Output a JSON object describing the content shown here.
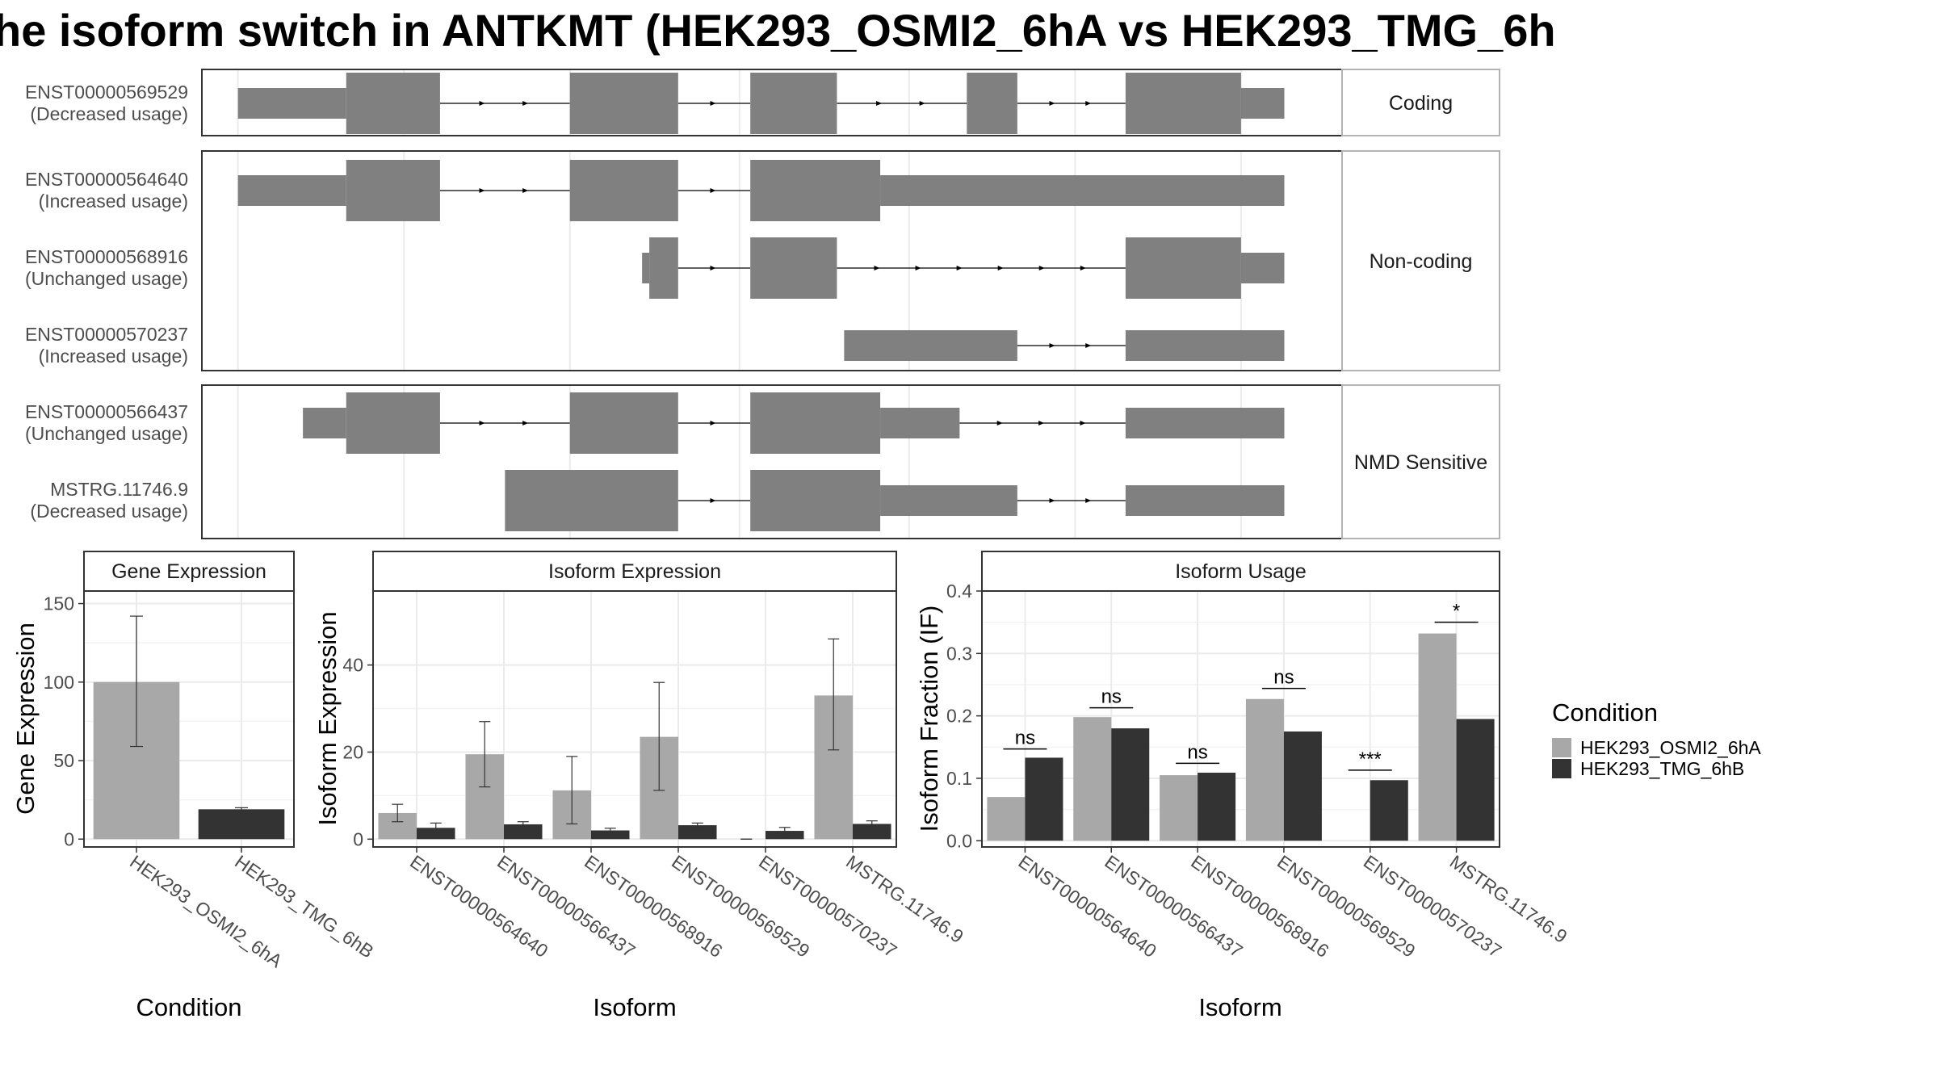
{
  "title": "he isoform switch in ANTKMT (HEK293_OSMI2_6hA vs HEK293_TMG_6h",
  "colors": {
    "exon": "#808080",
    "condA": "#a8a8a8",
    "condB": "#333333",
    "panel_border": "#333333",
    "strip_border": "#b3b3b3",
    "grid": "#ebebeb"
  },
  "structure": {
    "groups": [
      {
        "label": "Coding",
        "transcripts": [
          {
            "id": "ENST00000569529",
            "usage": "(Decreased usage)",
            "exons": [
              [
                0.05,
                0.2,
                "utr"
              ],
              [
                0.2,
                0.33,
                "cds"
              ],
              [
                0.51,
                0.66,
                "cds"
              ],
              [
                0.76,
                0.88,
                "cds"
              ],
              [
                1.06,
                1.13,
                "cds"
              ],
              [
                1.28,
                1.44,
                "cds"
              ],
              [
                1.44,
                1.5,
                "utr"
              ]
            ]
          }
        ]
      },
      {
        "label": "Non-coding",
        "transcripts": [
          {
            "id": "ENST00000564640",
            "usage": "(Increased usage)",
            "exons": [
              [
                0.05,
                0.2,
                "utr"
              ],
              [
                0.2,
                0.33,
                "cds"
              ],
              [
                0.51,
                0.66,
                "cds"
              ],
              [
                0.76,
                0.94,
                "cds"
              ],
              [
                0.94,
                1.5,
                "utr"
              ]
            ]
          },
          {
            "id": "ENST00000568916",
            "usage": "(Unchanged usage)",
            "exons": [
              [
                0.61,
                0.62,
                "utr"
              ],
              [
                0.62,
                0.66,
                "cds"
              ],
              [
                0.76,
                0.88,
                "cds"
              ],
              [
                1.28,
                1.44,
                "cds"
              ],
              [
                1.44,
                1.5,
                "utr"
              ]
            ]
          },
          {
            "id": "ENST00000570237",
            "usage": "(Increased usage)",
            "exons": [
              [
                0.89,
                1.13,
                "utr"
              ],
              [
                1.28,
                1.5,
                "utr"
              ]
            ]
          }
        ]
      },
      {
        "label": "NMD Sensitive",
        "transcripts": [
          {
            "id": "ENST00000566437",
            "usage": "(Unchanged usage)",
            "exons": [
              [
                0.14,
                0.2,
                "utr"
              ],
              [
                0.2,
                0.33,
                "cds"
              ],
              [
                0.51,
                0.66,
                "cds"
              ],
              [
                0.76,
                0.94,
                "cds"
              ],
              [
                0.94,
                1.05,
                "utr"
              ],
              [
                1.28,
                1.5,
                "utr"
              ]
            ]
          },
          {
            "id": "MSTRG.11746.9",
            "usage": "(Decreased usage)",
            "exons": [
              [
                0.42,
                0.66,
                "cds"
              ],
              [
                0.76,
                0.94,
                "cds"
              ],
              [
                0.94,
                1.13,
                "utr"
              ],
              [
                1.28,
                1.5,
                "utr"
              ]
            ]
          }
        ]
      }
    ]
  },
  "legend": {
    "title": "Condition",
    "items": [
      "HEK293_OSMI2_6hA",
      "HEK293_TMG_6hB"
    ]
  },
  "chart_data": [
    {
      "type": "bar",
      "title": "Gene Expression",
      "xlabel": "Condition",
      "ylabel": "Gene Expression",
      "categories": [
        "HEK293_OSMI2_6hA",
        "HEK293_TMG_6hB"
      ],
      "values": [
        100,
        19
      ],
      "errors": [
        [
          59,
          142
        ],
        [
          18,
          20
        ]
      ],
      "ylim": [
        -5,
        158
      ],
      "yticks": [
        0,
        50,
        100,
        150
      ]
    },
    {
      "type": "bar",
      "title": "Isoform Expression",
      "xlabel": "Isoform",
      "ylabel": "Isoform Expression",
      "categories": [
        "ENST00000564640",
        "ENST00000566437",
        "ENST00000568916",
        "ENST00000569529",
        "ENST00000570237",
        "MSTRG.11746.9"
      ],
      "series": [
        {
          "name": "HEK293_OSMI2_6hA",
          "values": [
            6,
            19.5,
            11.2,
            23.5,
            0,
            33
          ],
          "errors": [
            [
              4,
              8
            ],
            [
              12,
              27
            ],
            [
              3.5,
              19
            ],
            [
              11.2,
              36
            ],
            [
              0,
              0
            ],
            [
              20.5,
              46
            ]
          ]
        },
        {
          "name": "HEK293_TMG_6hB",
          "values": [
            2.6,
            3.4,
            2,
            3.2,
            1.9,
            3.5
          ],
          "errors": [
            [
              1.5,
              3.7
            ],
            [
              2.8,
              4
            ],
            [
              1.5,
              2.5
            ],
            [
              2.7,
              3.7
            ],
            [
              1.1,
              2.7
            ],
            [
              2.8,
              4.2
            ]
          ]
        }
      ],
      "ylim": [
        -1.8,
        57
      ],
      "yticks": [
        0,
        20,
        40
      ]
    },
    {
      "type": "bar",
      "title": "Isoform Usage",
      "xlabel": "Isoform",
      "ylabel": "Isoform Fraction (IF)",
      "categories": [
        "ENST00000564640",
        "ENST00000566437",
        "ENST00000568916",
        "ENST00000569529",
        "ENST00000570237",
        "MSTRG.11746.9"
      ],
      "series": [
        {
          "name": "HEK293_OSMI2_6hA",
          "values": [
            0.07,
            0.198,
            0.105,
            0.227,
            0,
            0.332
          ]
        },
        {
          "name": "HEK293_TMG_6hB",
          "values": [
            0.133,
            0.18,
            0.109,
            0.175,
            0.097,
            0.195
          ]
        }
      ],
      "significance": [
        {
          "category": "ENST00000564640",
          "label": "ns",
          "y": 0.147
        },
        {
          "category": "ENST00000566437",
          "label": "ns",
          "y": 0.213
        },
        {
          "category": "ENST00000568916",
          "label": "ns",
          "y": 0.124
        },
        {
          "category": "ENST00000569529",
          "label": "ns",
          "y": 0.244
        },
        {
          "category": "ENST00000570237",
          "label": "***",
          "y": 0.113
        },
        {
          "category": "MSTRG.11746.9",
          "label": "*",
          "y": 0.35
        }
      ],
      "ylim": [
        -0.01,
        0.4
      ],
      "yticks": [
        0.0,
        0.1,
        0.2,
        0.3,
        0.4
      ],
      "ytick_labels": [
        "0.0",
        "0.1",
        "0.2",
        "0.3",
        "0.4"
      ]
    }
  ]
}
